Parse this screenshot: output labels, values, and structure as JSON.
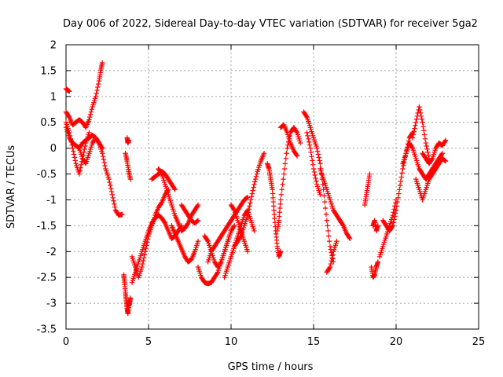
{
  "chart_data": {
    "type": "scatter",
    "title": "Day 006 of 2022, Sidereal Day-to-day VTEC variation (SDTVAR) for receiver 5ga2",
    "xlabel": "GPS time / hours",
    "ylabel": "SDTVAR / TECUs",
    "xlim": [
      0,
      25
    ],
    "ylim": [
      -3.5,
      2
    ],
    "x_ticks": [
      "0",
      "5",
      "10",
      "15",
      "20",
      "25"
    ],
    "x_tick_values": [
      0,
      5,
      10,
      15,
      20,
      25
    ],
    "y_ticks": [
      "2",
      "1.5",
      "1",
      "0.5",
      "0",
      "-0.5",
      "-1",
      "-1.5",
      "-2",
      "-2.5",
      "-3",
      "-3.5"
    ],
    "y_tick_values": [
      2,
      1.5,
      1,
      0.5,
      0,
      -0.5,
      -1,
      -1.5,
      -2,
      -2.5,
      -3,
      -3.5
    ],
    "grid": true,
    "marker": "plus",
    "color": "#ff0000",
    "series": [
      {
        "name": "a1",
        "x": [
          0.0,
          0.1,
          0.2
        ],
        "y": [
          1.15,
          1.12,
          1.1
        ]
      },
      {
        "name": "a2",
        "x": [
          0.0,
          0.2,
          0.4,
          0.6,
          0.8,
          1.0,
          1.2,
          1.4,
          1.6,
          1.8,
          2.0,
          2.1,
          2.2
        ],
        "y": [
          0.7,
          0.6,
          0.45,
          0.5,
          0.55,
          0.5,
          0.4,
          0.55,
          0.8,
          1.0,
          1.3,
          1.5,
          1.65
        ]
      },
      {
        "name": "a3",
        "x": [
          0.0,
          0.2,
          0.4,
          0.6,
          0.8,
          1.0,
          1.2,
          1.4,
          1.6,
          1.8,
          2.0,
          2.2,
          2.4,
          2.6,
          2.8,
          3.0,
          3.2,
          3.4
        ],
        "y": [
          0.4,
          0.2,
          0.1,
          0.05,
          0.0,
          0.1,
          0.15,
          0.2,
          0.25,
          0.2,
          0.1,
          -0.1,
          -0.4,
          -0.6,
          -0.9,
          -1.2,
          -1.3,
          -1.28
        ]
      },
      {
        "name": "a4",
        "x": [
          0.0,
          0.2,
          0.4,
          0.6,
          0.8,
          1.0,
          1.2,
          1.4
        ],
        "y": [
          0.5,
          0.3,
          0.0,
          -0.3,
          -0.5,
          -0.2,
          0.1,
          0.3
        ]
      },
      {
        "name": "a5",
        "x": [
          0.8,
          1.0,
          1.2,
          1.4,
          1.6,
          1.8,
          2.0,
          2.2
        ],
        "y": [
          0.0,
          -0.2,
          -0.3,
          -0.1,
          0.1,
          0.2,
          0.1,
          0.0
        ]
      },
      {
        "name": "b1",
        "x": [
          3.7,
          3.75,
          3.8
        ],
        "y": [
          0.2,
          0.1,
          0.15
        ]
      },
      {
        "name": "b2",
        "x": [
          3.6,
          3.7,
          3.8,
          3.9
        ],
        "y": [
          -0.1,
          -0.25,
          -0.45,
          -0.6
        ]
      },
      {
        "name": "b3",
        "x": [
          3.5,
          3.55,
          3.6,
          3.65,
          3.7,
          3.75,
          3.8,
          3.85,
          3.9
        ],
        "y": [
          -2.45,
          -2.6,
          -2.8,
          -2.95,
          -3.1,
          -3.2,
          -3.05,
          -3.0,
          -2.9
        ]
      },
      {
        "name": "c1",
        "x": [
          4.0,
          4.2,
          4.4,
          4.6,
          4.8,
          5.0,
          5.2,
          5.4,
          5.6,
          5.8,
          6.0,
          6.2,
          6.4,
          6.6,
          6.8,
          7.0
        ],
        "y": [
          -2.6,
          -2.4,
          -2.2,
          -2.0,
          -1.8,
          -1.6,
          -1.45,
          -1.35,
          -1.3,
          -1.35,
          -1.45,
          -1.6,
          -1.75,
          -1.7,
          -1.6,
          -1.5
        ]
      },
      {
        "name": "c2",
        "x": [
          4.0,
          4.2,
          4.4,
          4.6,
          4.8,
          5.0,
          5.2,
          5.4,
          5.6,
          5.8,
          6.0,
          6.2
        ],
        "y": [
          -2.1,
          -2.3,
          -2.5,
          -2.3,
          -2.0,
          -1.7,
          -1.5,
          -1.3,
          -1.15,
          -1.05,
          -0.9,
          -0.8
        ]
      },
      {
        "name": "c3",
        "x": [
          5.2,
          5.4,
          5.6,
          5.8,
          6.0,
          6.2,
          6.4,
          6.6
        ],
        "y": [
          -0.6,
          -0.55,
          -0.5,
          -0.45,
          -0.5,
          -0.6,
          -0.7,
          -0.8
        ]
      },
      {
        "name": "c4",
        "x": [
          5.6,
          5.8,
          6.0,
          6.2,
          6.4,
          6.6,
          6.8,
          7.0,
          7.2,
          7.4,
          7.6,
          7.8,
          8.0
        ],
        "y": [
          -0.4,
          -0.5,
          -0.7,
          -0.9,
          -1.1,
          -1.3,
          -1.45,
          -1.6,
          -1.55,
          -1.45,
          -1.3,
          -1.2,
          -1.1
        ]
      },
      {
        "name": "c5",
        "x": [
          6.4,
          6.6,
          6.8,
          7.0,
          7.2,
          7.4,
          7.6,
          7.8,
          8.0
        ],
        "y": [
          -1.5,
          -1.65,
          -1.8,
          -1.95,
          -2.1,
          -2.2,
          -2.15,
          -2.0,
          -1.8
        ]
      },
      {
        "name": "c6",
        "x": [
          7.0,
          7.2,
          7.4,
          7.6,
          7.8,
          8.0
        ],
        "y": [
          -1.1,
          -1.2,
          -1.3,
          -1.4,
          -1.45,
          -1.4
        ]
      },
      {
        "name": "d1",
        "x": [
          8.0,
          8.2,
          8.4,
          8.6,
          8.8,
          9.0,
          9.2,
          9.4,
          9.6,
          9.8,
          10.0
        ],
        "y": [
          -2.3,
          -2.5,
          -2.6,
          -2.62,
          -2.6,
          -2.5,
          -2.4,
          -2.2,
          -2.0,
          -1.8,
          -1.6
        ]
      },
      {
        "name": "d2",
        "x": [
          8.4,
          8.6,
          8.8,
          9.0,
          9.2,
          9.4,
          9.6,
          9.8,
          10.0,
          10.2
        ],
        "y": [
          -1.7,
          -1.8,
          -2.0,
          -2.2,
          -2.3,
          -2.2,
          -2.0,
          -1.8,
          -1.6,
          -1.5
        ]
      },
      {
        "name": "d3",
        "x": [
          8.6,
          8.8,
          9.0,
          9.2,
          9.4,
          9.6,
          9.8,
          10.0,
          10.2,
          10.4,
          10.6,
          10.8,
          11.0
        ],
        "y": [
          -2.2,
          -2.0,
          -1.9,
          -1.8,
          -1.7,
          -1.6,
          -1.5,
          -1.4,
          -1.3,
          -1.2,
          -1.1,
          -1.0,
          -0.95
        ]
      },
      {
        "name": "d4",
        "x": [
          9.6,
          9.8,
          10.0,
          10.2,
          10.4,
          10.6,
          10.8,
          11.0,
          11.2,
          11.4,
          11.6,
          11.8,
          12.0
        ],
        "y": [
          -2.5,
          -2.3,
          -2.1,
          -1.9,
          -1.8,
          -1.7,
          -1.5,
          -1.3,
          -1.0,
          -0.7,
          -0.45,
          -0.25,
          -0.1
        ]
      },
      {
        "name": "d5",
        "x": [
          10.0,
          10.2,
          10.4,
          10.6,
          10.8,
          11.0
        ],
        "y": [
          -1.1,
          -1.2,
          -1.4,
          -1.6,
          -1.8,
          -2.0
        ]
      },
      {
        "name": "d6",
        "x": [
          10.2,
          10.4,
          10.6,
          10.8,
          11.0,
          11.2,
          11.4
        ],
        "y": [
          -1.9,
          -1.7,
          -1.5,
          -1.3,
          -1.2,
          -1.4,
          -1.6
        ]
      },
      {
        "name": "e1",
        "x": [
          12.2,
          12.3,
          12.4,
          12.5,
          12.6,
          12.7,
          12.8,
          12.9,
          13.0
        ],
        "y": [
          -0.3,
          -0.4,
          -0.6,
          -0.8,
          -1.2,
          -1.6,
          -1.9,
          -2.1,
          -2.0
        ]
      },
      {
        "name": "e2",
        "x": [
          12.8,
          12.9,
          13.0,
          13.2,
          13.4,
          13.6,
          13.8,
          14.0,
          14.2
        ],
        "y": [
          -1.6,
          -1.4,
          -1.0,
          -0.5,
          0.0,
          0.3,
          0.4,
          0.3,
          0.1
        ]
      },
      {
        "name": "e3",
        "x": [
          13.0,
          13.2,
          13.4,
          13.6,
          13.8,
          14.0
        ],
        "y": [
          0.4,
          0.45,
          0.3,
          0.1,
          -0.05,
          -0.15
        ]
      },
      {
        "name": "f1",
        "x": [
          14.4,
          14.6,
          14.8,
          15.0,
          15.2,
          15.4,
          15.6,
          15.8,
          16.0,
          16.2
        ],
        "y": [
          0.7,
          0.6,
          0.4,
          0.2,
          0.0,
          -0.3,
          -0.8,
          -1.4,
          -1.9,
          -2.2
        ]
      },
      {
        "name": "f2",
        "x": [
          14.6,
          14.8,
          15.0,
          15.2,
          15.4
        ],
        "y": [
          0.3,
          0.0,
          -0.4,
          -0.7,
          -0.9
        ]
      },
      {
        "name": "f3",
        "x": [
          15.4,
          15.6,
          15.8,
          16.0,
          16.2,
          16.4,
          16.6,
          16.8,
          17.0,
          17.2
        ],
        "y": [
          -0.4,
          -0.6,
          -0.8,
          -1.0,
          -1.2,
          -1.3,
          -1.4,
          -1.5,
          -1.65,
          -1.75
        ]
      },
      {
        "name": "f4",
        "x": [
          15.8,
          16.0,
          16.2,
          16.4
        ],
        "y": [
          -2.4,
          -2.3,
          -2.0,
          -1.8
        ]
      },
      {
        "name": "g1",
        "x": [
          18.1,
          18.2,
          18.3,
          18.4
        ],
        "y": [
          -1.1,
          -0.9,
          -0.7,
          -0.5
        ]
      },
      {
        "name": "g2",
        "x": [
          18.5,
          18.6,
          18.7,
          18.8,
          18.9
        ],
        "y": [
          -2.3,
          -2.5,
          -2.45,
          -2.3,
          -2.2
        ]
      },
      {
        "name": "g3",
        "x": [
          18.6,
          18.7,
          18.8,
          18.9
        ],
        "y": [
          -1.5,
          -1.4,
          -1.6,
          -1.5
        ]
      },
      {
        "name": "g4",
        "x": [
          19.0,
          19.2,
          19.4,
          19.6,
          19.8,
          20.0
        ],
        "y": [
          -2.1,
          -1.9,
          -1.7,
          -1.5,
          -1.3,
          -1.0
        ]
      },
      {
        "name": "g5",
        "x": [
          19.2,
          19.4,
          19.6,
          19.8,
          20.0,
          20.2,
          20.4,
          20.6,
          20.8,
          21.0
        ],
        "y": [
          -1.4,
          -1.5,
          -1.6,
          -1.5,
          -1.2,
          -0.8,
          -0.4,
          -0.1,
          0.2,
          0.3
        ]
      },
      {
        "name": "h1",
        "x": [
          20.4,
          20.6,
          20.8,
          21.0,
          21.2,
          21.4,
          21.6,
          21.8,
          22.0,
          22.2,
          22.4,
          22.6,
          22.8
        ],
        "y": [
          -0.3,
          -0.1,
          0.1,
          0.0,
          -0.2,
          -0.4,
          -0.5,
          -0.6,
          -0.5,
          -0.4,
          -0.3,
          -0.2,
          -0.1
        ]
      },
      {
        "name": "h2",
        "x": [
          21.0,
          21.2,
          21.4,
          21.6,
          21.8,
          22.0
        ],
        "y": [
          0.2,
          0.5,
          0.8,
          0.5,
          0.1,
          -0.2
        ]
      },
      {
        "name": "h3",
        "x": [
          21.2,
          21.4,
          21.6,
          21.8,
          22.0,
          22.2,
          22.4,
          22.6,
          22.8,
          23.0
        ],
        "y": [
          -0.6,
          -0.8,
          -1.0,
          -0.8,
          -0.6,
          -0.5,
          -0.4,
          -0.3,
          -0.2,
          -0.25
        ]
      },
      {
        "name": "h4",
        "x": [
          21.6,
          21.8,
          22.0,
          22.2,
          22.4,
          22.6,
          22.8,
          23.0
        ],
        "y": [
          -0.1,
          -0.2,
          -0.3,
          -0.2,
          0.0,
          0.1,
          0.05,
          0.15
        ]
      }
    ]
  }
}
